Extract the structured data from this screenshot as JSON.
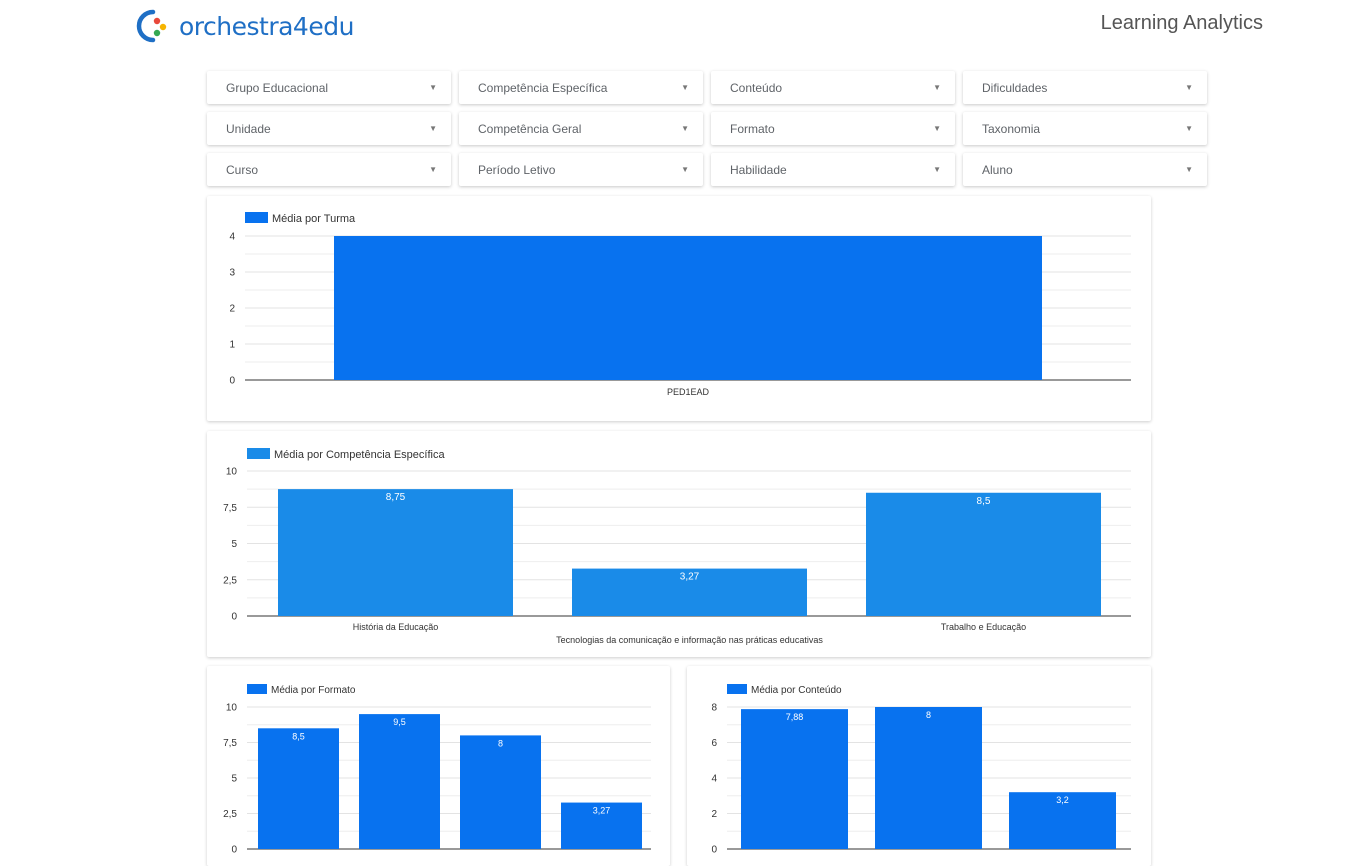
{
  "header": {
    "logo_part1": "orchestra",
    "logo_part2": "4edu",
    "app_title": "Learning Analytics"
  },
  "filters": [
    {
      "label": "Grupo Educacional"
    },
    {
      "label": "Competência Específica"
    },
    {
      "label": "Conteúdo"
    },
    {
      "label": "Dificuldades"
    },
    {
      "label": "Unidade"
    },
    {
      "label": "Competência Geral"
    },
    {
      "label": "Formato"
    },
    {
      "label": "Taxonomia"
    },
    {
      "label": "Curso"
    },
    {
      "label": "Período Letivo"
    },
    {
      "label": "Habilidade"
    },
    {
      "label": "Aluno"
    }
  ],
  "colors": {
    "bar_primary": "#0872ef",
    "bar_secondary": "#1a8be8",
    "logo_blue": "#1f6fc5"
  },
  "chart_data": [
    {
      "id": "turma",
      "type": "bar",
      "legend": "Média por Turma",
      "categories": [
        "PED1EAD"
      ],
      "values": [
        4
      ],
      "ylim": [
        0,
        4
      ],
      "yticks": [
        "0",
        "1",
        "2",
        "3",
        "4"
      ],
      "data_labels": [
        ""
      ],
      "legend_placement": "top-left",
      "grid": true
    },
    {
      "id": "competencia",
      "type": "bar",
      "legend": "Média por Competência Específica",
      "categories": [
        "História da Educação",
        "Tecnologias da comunicação e informação nas práticas educativas",
        "Trabalho e Educação"
      ],
      "values": [
        8.75,
        3.27,
        8.5
      ],
      "ylim": [
        0,
        10
      ],
      "yticks": [
        "0",
        "2,5",
        "5",
        "7,5",
        "10"
      ],
      "data_labels": [
        "8,75",
        "3,27",
        "8,5"
      ],
      "legend_placement": "top-left",
      "grid": true
    },
    {
      "id": "formato",
      "type": "bar",
      "legend": "Média por Formato",
      "categories": [
        "",
        "",
        "",
        ""
      ],
      "values": [
        8.5,
        9.5,
        8,
        3.27
      ],
      "ylim": [
        0,
        10
      ],
      "yticks": [
        "0",
        "2,5",
        "5",
        "7,5",
        "10"
      ],
      "data_labels": [
        "8,5",
        "9,5",
        "8",
        "3,27"
      ],
      "legend_placement": "top-left",
      "grid": true
    },
    {
      "id": "conteudo",
      "type": "bar",
      "legend": "Média por Conteúdo",
      "categories": [
        "",
        "",
        ""
      ],
      "values": [
        7.88,
        8,
        3.2
      ],
      "ylim": [
        0,
        8
      ],
      "yticks": [
        "0",
        "2",
        "4",
        "6",
        "8"
      ],
      "data_labels": [
        "7,88",
        "8",
        "3,2"
      ],
      "legend_placement": "top-left",
      "grid": true
    }
  ]
}
